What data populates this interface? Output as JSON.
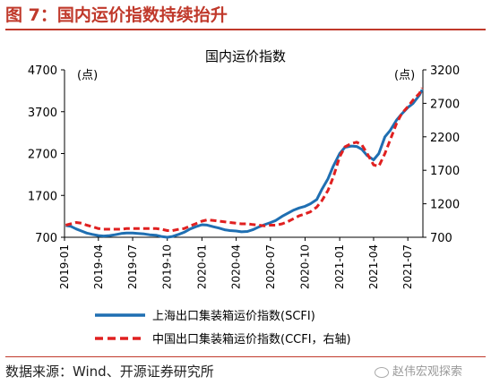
{
  "figure": {
    "title": "图 7：国内运价指数持续抬升",
    "source": "数据来源：Wind、开源证券研究所",
    "watermark": "赵伟宏观探索"
  },
  "chart_data": {
    "type": "line",
    "title": "国内运价指数",
    "left_unit": "(点)",
    "right_unit": "(点)",
    "left_ylim": [
      700,
      4700
    ],
    "left_ticks": [
      "4700",
      "3700",
      "2700",
      "1700",
      "700"
    ],
    "right_ylim": [
      700,
      3200
    ],
    "right_ticks": [
      "3200",
      "2700",
      "2200",
      "1700",
      "1200",
      "700"
    ],
    "x_range": [
      "2019-01",
      "2021-08"
    ],
    "x_ticks": [
      "2019-01",
      "2019-04",
      "2019-07",
      "2019-10",
      "2020-01",
      "2020-04",
      "2020-07",
      "2020-10",
      "2021-01",
      "2021-04",
      "2021-07"
    ],
    "series": [
      {
        "name": "上海出口集装箱运价指数(SCFI)",
        "axis": "left",
        "color": "#1f6fb2",
        "style": "solid",
        "points": [
          [
            "2019-01-04",
            980
          ],
          [
            "2019-01-18",
            960
          ],
          [
            "2019-02-01",
            900
          ],
          [
            "2019-02-15",
            850
          ],
          [
            "2019-03-01",
            800
          ],
          [
            "2019-03-15",
            770
          ],
          [
            "2019-04-01",
            740
          ],
          [
            "2019-04-15",
            730
          ],
          [
            "2019-05-01",
            740
          ],
          [
            "2019-05-15",
            760
          ],
          [
            "2019-06-01",
            790
          ],
          [
            "2019-06-15",
            800
          ],
          [
            "2019-07-01",
            800
          ],
          [
            "2019-07-15",
            790
          ],
          [
            "2019-08-01",
            780
          ],
          [
            "2019-08-15",
            760
          ],
          [
            "2019-09-01",
            750
          ],
          [
            "2019-09-15",
            720
          ],
          [
            "2019-10-01",
            700
          ],
          [
            "2019-10-15",
            720
          ],
          [
            "2019-11-01",
            770
          ],
          [
            "2019-11-15",
            820
          ],
          [
            "2019-12-01",
            900
          ],
          [
            "2019-12-15",
            950
          ],
          [
            "2020-01-01",
            1000
          ],
          [
            "2020-01-15",
            990
          ],
          [
            "2020-02-01",
            950
          ],
          [
            "2020-02-15",
            920
          ],
          [
            "2020-03-01",
            880
          ],
          [
            "2020-03-15",
            860
          ],
          [
            "2020-04-01",
            850
          ],
          [
            "2020-04-15",
            830
          ],
          [
            "2020-05-01",
            840
          ],
          [
            "2020-05-15",
            880
          ],
          [
            "2020-06-01",
            950
          ],
          [
            "2020-06-15",
            1000
          ],
          [
            "2020-07-01",
            1050
          ],
          [
            "2020-07-15",
            1100
          ],
          [
            "2020-08-01",
            1200
          ],
          [
            "2020-08-15",
            1270
          ],
          [
            "2020-09-01",
            1350
          ],
          [
            "2020-09-15",
            1400
          ],
          [
            "2020-10-01",
            1440
          ],
          [
            "2020-10-15",
            1500
          ],
          [
            "2020-11-01",
            1600
          ],
          [
            "2020-11-15",
            1850
          ],
          [
            "2020-12-01",
            2100
          ],
          [
            "2020-12-15",
            2400
          ],
          [
            "2021-01-01",
            2700
          ],
          [
            "2021-01-15",
            2850
          ],
          [
            "2021-02-01",
            2880
          ],
          [
            "2021-02-15",
            2870
          ],
          [
            "2021-03-01",
            2800
          ],
          [
            "2021-03-15",
            2650
          ],
          [
            "2021-04-01",
            2550
          ],
          [
            "2021-04-15",
            2700
          ],
          [
            "2021-05-01",
            3100
          ],
          [
            "2021-05-15",
            3250
          ],
          [
            "2021-06-01",
            3500
          ],
          [
            "2021-06-15",
            3650
          ],
          [
            "2021-07-01",
            3800
          ],
          [
            "2021-07-15",
            3900
          ],
          [
            "2021-08-01",
            4100
          ],
          [
            "2021-08-08",
            4225
          ]
        ]
      },
      {
        "name": "中国出口集装箱运价指数(CCFI，右轴)",
        "axis": "right",
        "color": "#e02020",
        "style": "dashed",
        "points": [
          [
            "2019-01-04",
            880
          ],
          [
            "2019-01-18",
            900
          ],
          [
            "2019-02-01",
            920
          ],
          [
            "2019-02-15",
            910
          ],
          [
            "2019-03-01",
            880
          ],
          [
            "2019-03-15",
            860
          ],
          [
            "2019-04-01",
            830
          ],
          [
            "2019-04-15",
            820
          ],
          [
            "2019-05-01",
            820
          ],
          [
            "2019-05-15",
            820
          ],
          [
            "2019-06-01",
            820
          ],
          [
            "2019-06-15",
            830
          ],
          [
            "2019-07-01",
            830
          ],
          [
            "2019-07-15",
            830
          ],
          [
            "2019-08-01",
            830
          ],
          [
            "2019-08-15",
            830
          ],
          [
            "2019-09-01",
            830
          ],
          [
            "2019-09-15",
            820
          ],
          [
            "2019-10-01",
            800
          ],
          [
            "2019-10-15",
            800
          ],
          [
            "2019-11-01",
            820
          ],
          [
            "2019-11-15",
            830
          ],
          [
            "2019-12-01",
            870
          ],
          [
            "2019-12-15",
            900
          ],
          [
            "2020-01-01",
            940
          ],
          [
            "2020-01-15",
            960
          ],
          [
            "2020-02-01",
            950
          ],
          [
            "2020-02-15",
            940
          ],
          [
            "2020-03-01",
            930
          ],
          [
            "2020-03-15",
            920
          ],
          [
            "2020-04-01",
            910
          ],
          [
            "2020-04-15",
            900
          ],
          [
            "2020-05-01",
            900
          ],
          [
            "2020-05-15",
            890
          ],
          [
            "2020-06-01",
            880
          ],
          [
            "2020-06-15",
            870
          ],
          [
            "2020-07-01",
            880
          ],
          [
            "2020-07-15",
            880
          ],
          [
            "2020-08-01",
            900
          ],
          [
            "2020-08-15",
            930
          ],
          [
            "2020-09-01",
            980
          ],
          [
            "2020-09-15",
            1020
          ],
          [
            "2020-10-01",
            1050
          ],
          [
            "2020-10-15",
            1080
          ],
          [
            "2020-11-01",
            1150
          ],
          [
            "2020-11-15",
            1250
          ],
          [
            "2020-12-01",
            1400
          ],
          [
            "2020-12-15",
            1600
          ],
          [
            "2021-01-01",
            1900
          ],
          [
            "2021-01-15",
            2050
          ],
          [
            "2021-02-01",
            2100
          ],
          [
            "2021-02-15",
            2120
          ],
          [
            "2021-03-01",
            2080
          ],
          [
            "2021-03-15",
            1950
          ],
          [
            "2021-04-01",
            1780
          ],
          [
            "2021-04-15",
            1760
          ],
          [
            "2021-05-01",
            1950
          ],
          [
            "2021-05-15",
            2150
          ],
          [
            "2021-06-01",
            2400
          ],
          [
            "2021-06-15",
            2550
          ],
          [
            "2021-07-01",
            2650
          ],
          [
            "2021-07-15",
            2750
          ],
          [
            "2021-08-01",
            2850
          ],
          [
            "2021-08-08",
            2930
          ]
        ]
      }
    ]
  }
}
